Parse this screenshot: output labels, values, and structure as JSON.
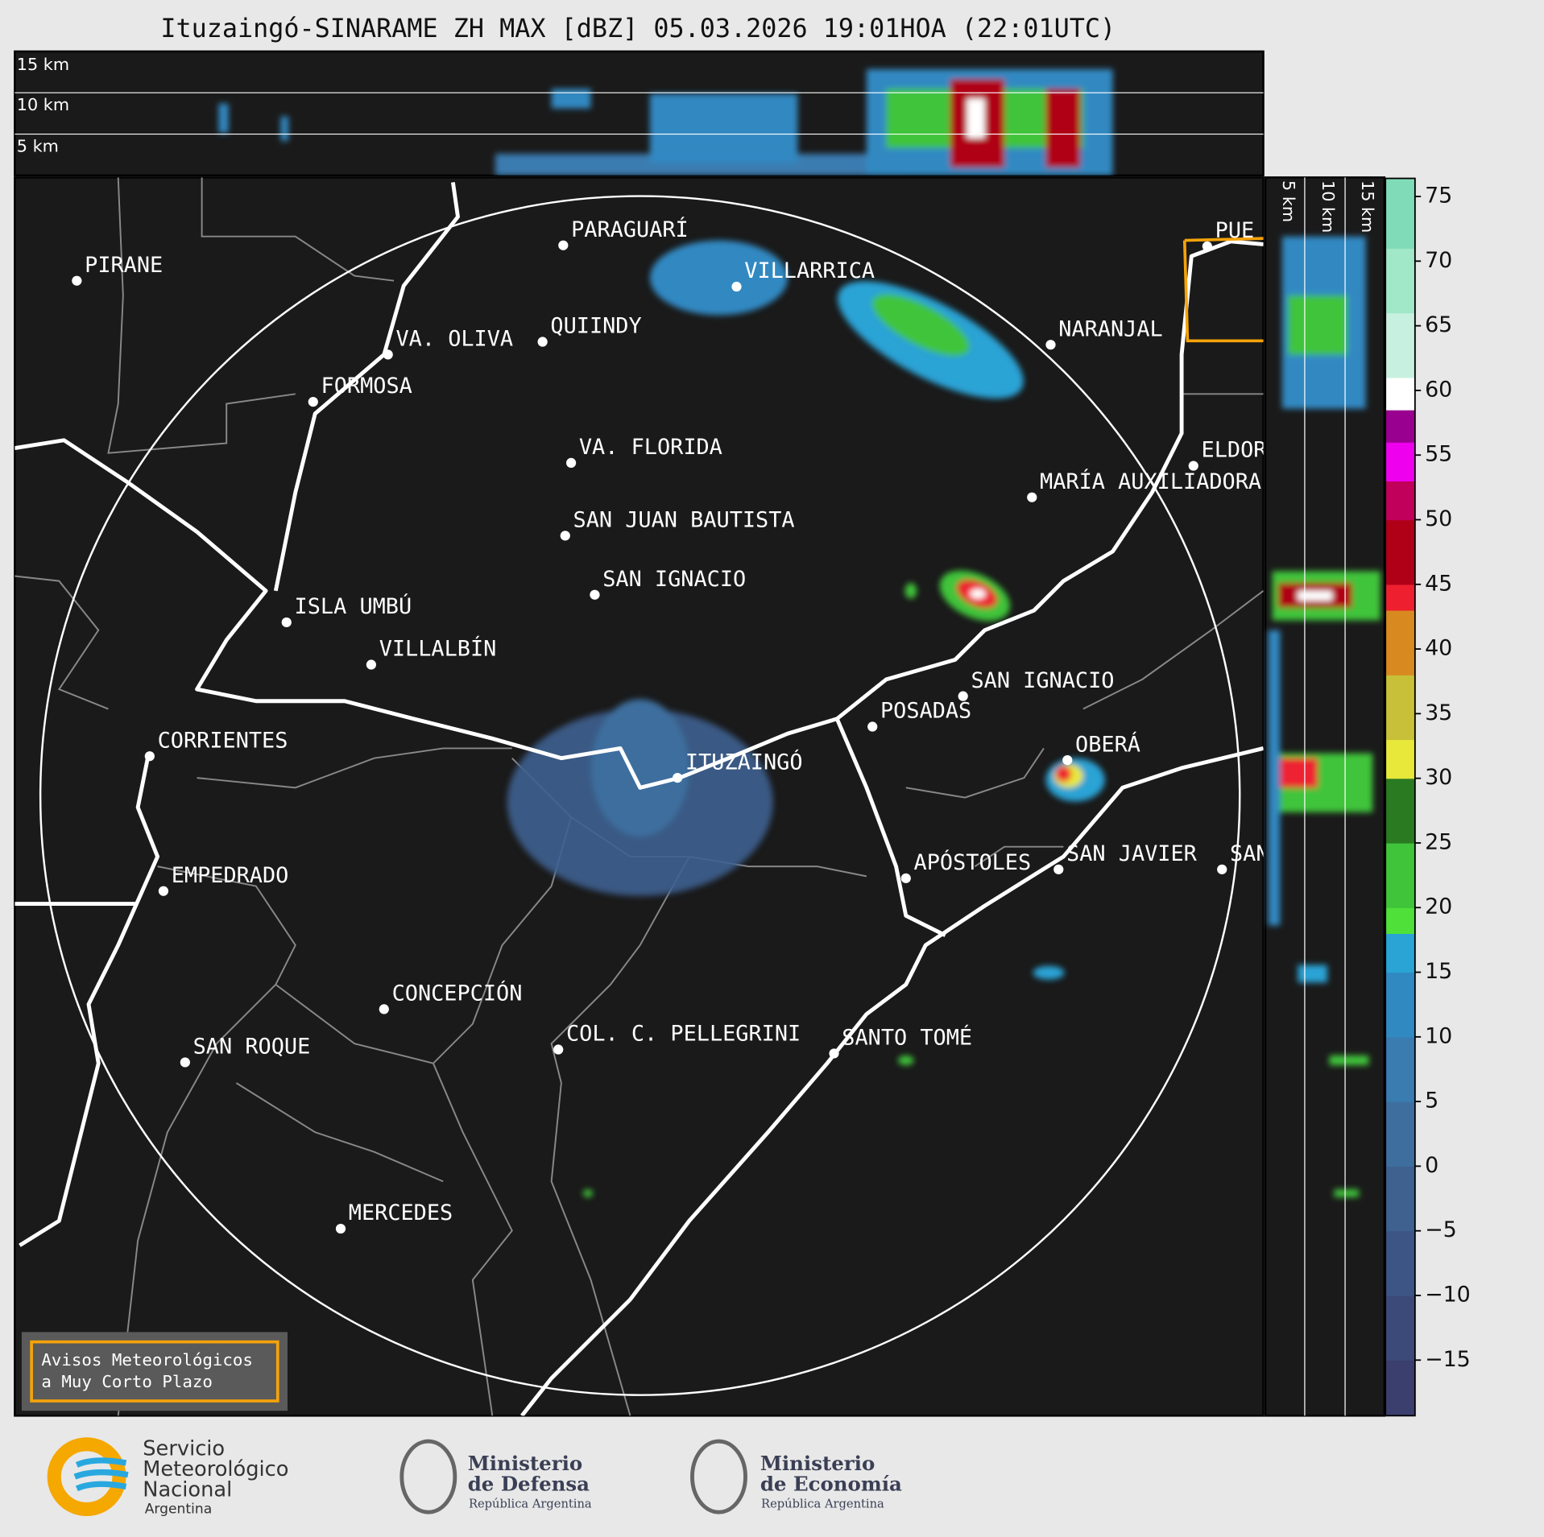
{
  "title": "Ituzaingó-SINARAME ZH MAX [dBZ] 05.03.2026 19:01HOA (22:01UTC)",
  "profile_top": {
    "labels": [
      "15 km",
      "10 km",
      "5 km"
    ]
  },
  "profile_side": {
    "labels": [
      "5 km",
      "10 km",
      "15 km"
    ]
  },
  "cities": [
    "PIRANE",
    "PARAGUARÍ",
    "VILLARRICA",
    "QUIINDY",
    "VA. OLIVA",
    "FORMOSA",
    "NARANJAL",
    "VA. FLORIDA",
    "ELDORADO",
    "MARÍA AUXILIADORA",
    "SAN JUAN BAUTISTA",
    "SAN IGNACIO",
    "ISLA UMBÚ",
    "VILLALBÍN",
    "SAN IGNACIO",
    "POSADAS",
    "CORRIENTES",
    "ITUZAINGÓ",
    "OBERÁ",
    "APÓSTOLES",
    "SAN JAVIER",
    "SAN",
    "EMPEDRADO",
    "CONCEPCIÓN",
    "COL. C. PELLEGRINI",
    "SANTO TOMÉ",
    "SAN ROQUE",
    "MERCEDES",
    "PUE"
  ],
  "colorbar": {
    "lim": [
      -19.3,
      76.4
    ],
    "ticks": [
      75,
      70,
      65,
      60,
      55,
      50,
      45,
      40,
      35,
      30,
      25,
      20,
      15,
      10,
      5,
      0,
      {
        "value": -5,
        "label": "−5"
      },
      {
        "value": -10,
        "label": "−10"
      },
      {
        "value": -15,
        "label": "−15"
      }
    ],
    "segments": [
      {
        "from": -19.3,
        "to": -15,
        "color": "#3b3f6e"
      },
      {
        "from": -15,
        "to": -10,
        "color": "#3c4a7a"
      },
      {
        "from": -10,
        "to": -5,
        "color": "#3d5585"
      },
      {
        "from": -5,
        "to": 0,
        "color": "#3e6190"
      },
      {
        "from": 0,
        "to": 5,
        "color": "#3d6e9e"
      },
      {
        "from": 5,
        "to": 10,
        "color": "#3a7bb0"
      },
      {
        "from": 10,
        "to": 15,
        "color": "#3189c2"
      },
      {
        "from": 15,
        "to": 18,
        "color": "#2aa3d5"
      },
      {
        "from": 18,
        "to": 20,
        "color": "#4fe03a"
      },
      {
        "from": 20,
        "to": 25,
        "color": "#3fc43a"
      },
      {
        "from": 25,
        "to": 30,
        "color": "#2a7a22"
      },
      {
        "from": 30,
        "to": 33,
        "color": "#e8e83a"
      },
      {
        "from": 33,
        "to": 38,
        "color": "#c8c038"
      },
      {
        "from": 38,
        "to": 43,
        "color": "#d88a20"
      },
      {
        "from": 43,
        "to": 45,
        "color": "#ee2030"
      },
      {
        "from": 45,
        "to": 50,
        "color": "#b00018"
      },
      {
        "from": 50,
        "to": 53,
        "color": "#c0005a"
      },
      {
        "from": 53,
        "to": 56,
        "color": "#ee00ee"
      },
      {
        "from": 56,
        "to": 58.5,
        "color": "#9a0090"
      },
      {
        "from": 58.5,
        "to": 61,
        "color": "#ffffff"
      },
      {
        "from": 61,
        "to": 66,
        "color": "#c8f0e0"
      },
      {
        "from": 66,
        "to": 71,
        "color": "#a0e8c8"
      },
      {
        "from": 71,
        "to": 76.4,
        "color": "#80dcb8"
      }
    ]
  },
  "notice": {
    "lines": [
      "Avisos Meteorológicos",
      "a Muy Corto Plazo"
    ]
  },
  "logos": [
    {
      "lines": [
        "Servicio",
        "Meteorológico",
        "Nacional",
        "Argentina"
      ]
    },
    {
      "lines": [
        "Ministerio",
        "de Defensa",
        "República Argentina"
      ]
    },
    {
      "lines": [
        "Ministerio",
        "de Economía",
        "República Argentina"
      ]
    }
  ]
}
